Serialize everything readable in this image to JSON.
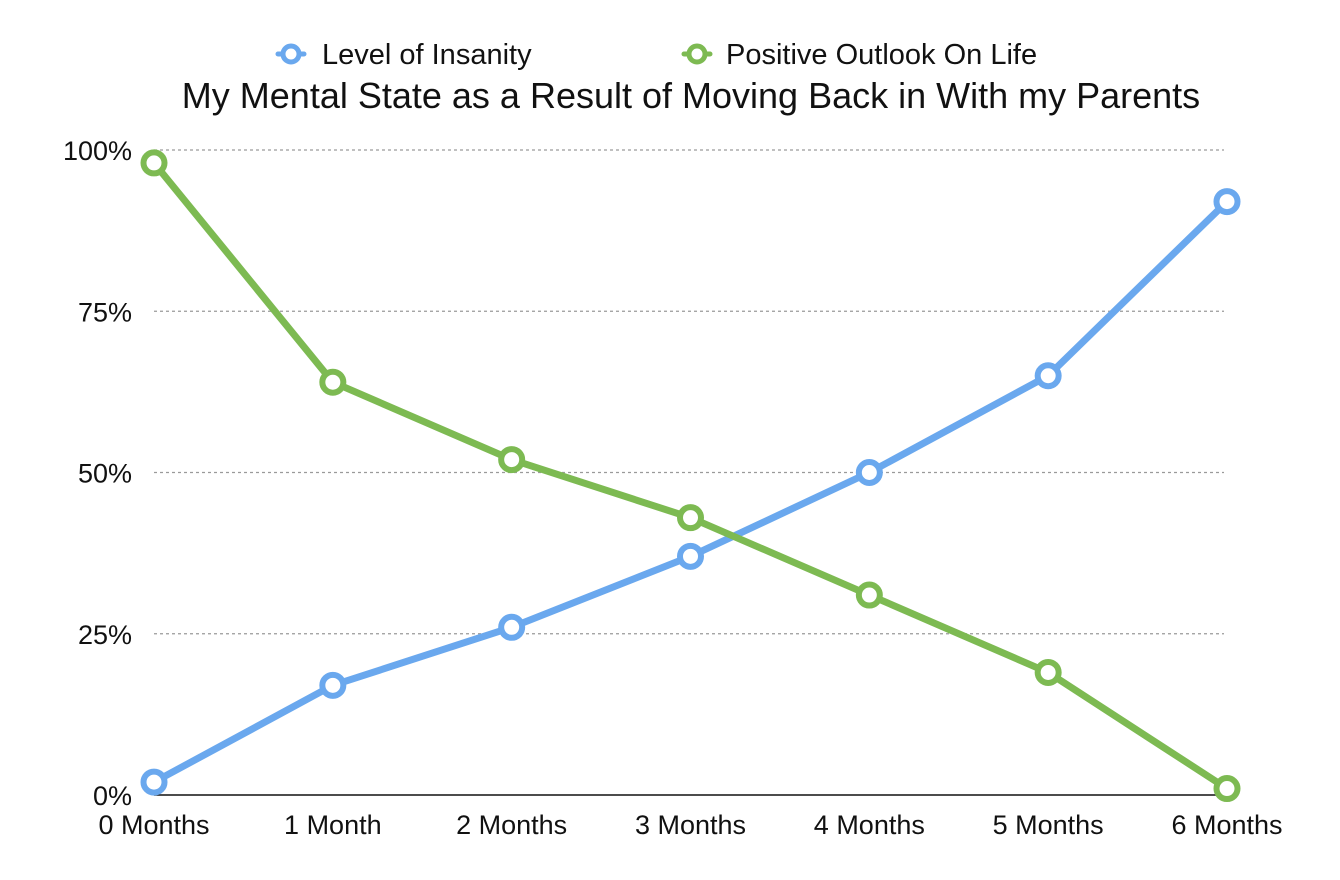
{
  "chart_data": {
    "type": "line",
    "title": "My Mental State as a Result of Moving Back in With my Parents",
    "xlabel": "",
    "ylabel": "",
    "categories": [
      "0 Months",
      "1 Month",
      "2 Months",
      "3 Months",
      "4 Months",
      "5 Months",
      "6 Months"
    ],
    "y_ticks": [
      "0%",
      "25%",
      "50%",
      "75%",
      "100%"
    ],
    "ylim": [
      0,
      100
    ],
    "grid": true,
    "legend_position": "top-center",
    "series": [
      {
        "name": "Level of Insanity",
        "color": "#6aa8ee",
        "values": [
          2,
          17,
          26,
          37,
          50,
          65,
          92
        ]
      },
      {
        "name": "Positive Outlook On Life",
        "color": "#7dba52",
        "values": [
          98,
          64,
          52,
          43,
          31,
          19,
          1
        ]
      }
    ]
  }
}
